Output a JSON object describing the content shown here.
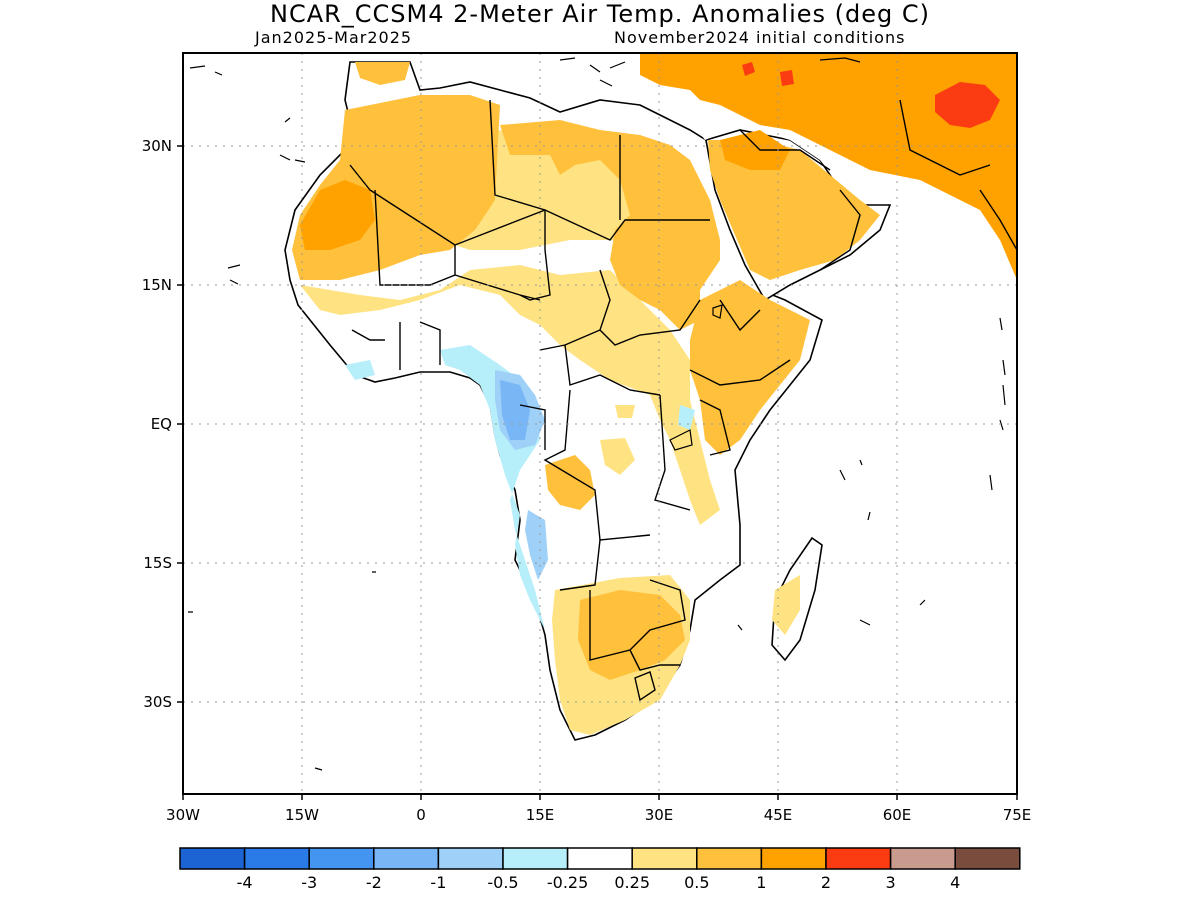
{
  "title": "NCAR_CCSM4 2-Meter Air Temp. Anomalies (deg C)",
  "subtitle_left": "Jan2025-Mar2025",
  "subtitle_right": "November2024 initial conditions",
  "map": {
    "lat_ticks": [
      "30N",
      "15N",
      "EQ",
      "15S",
      "30S"
    ],
    "lon_ticks": [
      "30W",
      "15W",
      "0",
      "15E",
      "30E",
      "45E",
      "60E",
      "75E"
    ]
  },
  "colorbar": {
    "colors": [
      "#1c63d4",
      "#2a7ae8",
      "#4495ef",
      "#78b6f5",
      "#9ed0f8",
      "#b6eefa",
      "#ffffff",
      "#ffe383",
      "#ffc03c",
      "#ffa200",
      "#fb3c12",
      "#c99b8f",
      "#7a4c3d"
    ],
    "labels": [
      "-4",
      "-3",
      "-2",
      "-1",
      "-0.5",
      "-0.25",
      "0.25",
      "0.5",
      "1",
      "2",
      "3",
      "4"
    ]
  },
  "chart_data": {
    "type": "heatmap",
    "title": "NCAR_CCSM4 2-Meter Air Temp. Anomalies (deg C)",
    "xlim": [
      -30,
      75
    ],
    "ylim": [
      -40,
      40
    ],
    "x_ticks": [
      "30W",
      "15W",
      "0",
      "15E",
      "30E",
      "45E",
      "60E",
      "75E"
    ],
    "y_ticks": [
      "30N",
      "15N",
      "EQ",
      "15S",
      "30S"
    ],
    "grid": true,
    "legend": "bottom",
    "color_levels": [
      -4,
      -3,
      -2,
      -1,
      -0.5,
      -0.25,
      0.25,
      0.5,
      1,
      2,
      3,
      4
    ]
  }
}
